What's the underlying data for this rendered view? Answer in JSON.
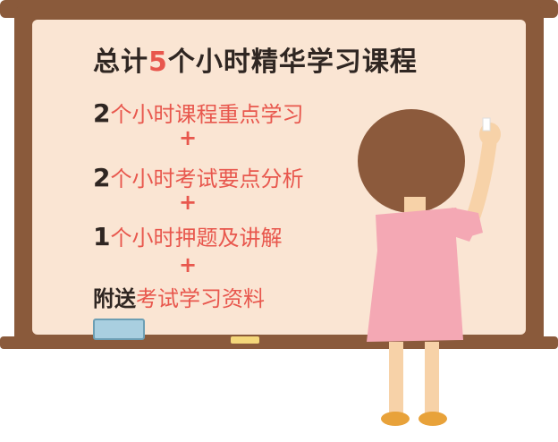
{
  "board": {
    "title_prefix": "总计",
    "title_number": "5",
    "title_suffix": "个小时精华学习课程",
    "line1_number": "2",
    "line1_text": "个小时课程重点学习",
    "plus": "+",
    "line2_number": "2",
    "line2_text": "个小时考试要点分析",
    "line3_number": "1",
    "line3_text": "个小时押题及讲解",
    "line4_prefix": "附送",
    "line4_text": "考试学习资料"
  },
  "colors": {
    "frame": "#8a5a3b",
    "surface": "#fae5d3",
    "accent_red": "#e8574d",
    "text_dark": "#2f2622",
    "dress": "#f4a8b4",
    "hair": "#8c5a3c",
    "skin": "#f7d2a8"
  }
}
